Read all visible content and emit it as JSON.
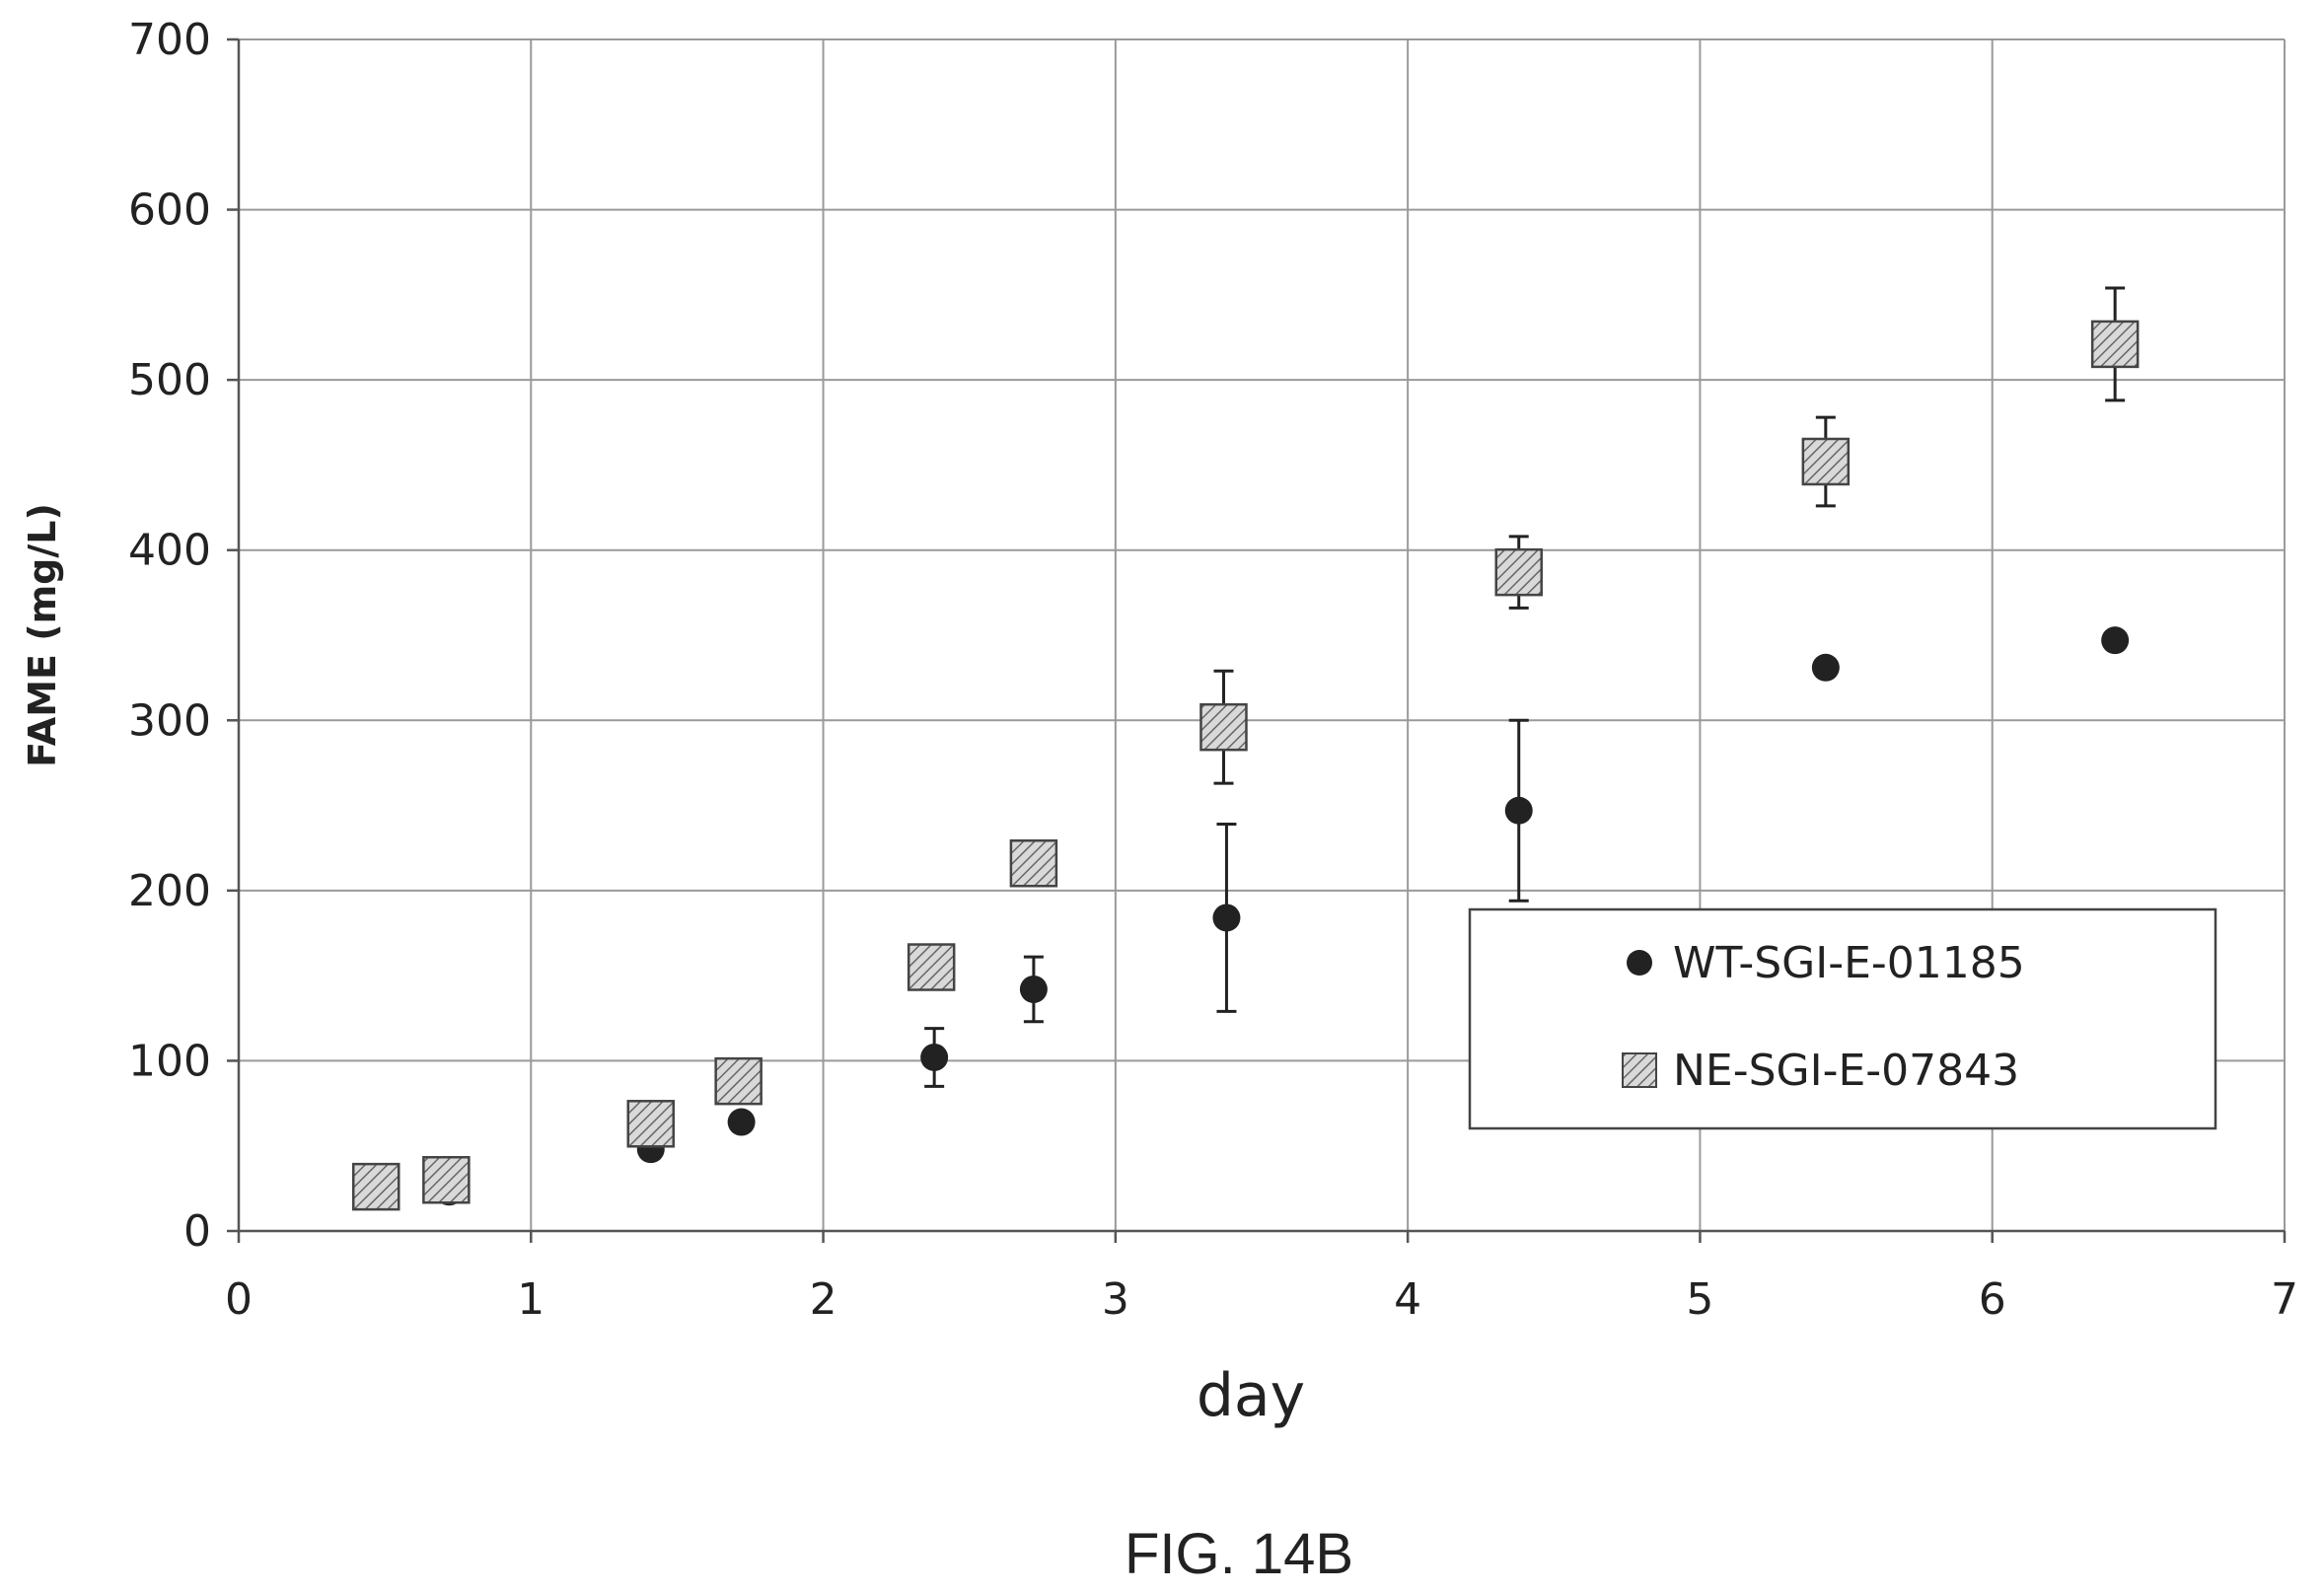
{
  "figure_label": "FIG. 14B",
  "chart_data": {
    "type": "scatter",
    "title": "",
    "xlabel": "day",
    "ylabel": "FAME (mg/L)",
    "xlim": [
      0,
      7
    ],
    "ylim": [
      0,
      700
    ],
    "x_ticks": [
      0,
      1,
      2,
      3,
      4,
      5,
      6,
      7
    ],
    "y_ticks": [
      0,
      100,
      200,
      300,
      400,
      500,
      600,
      700
    ],
    "grid": true,
    "legend_position": "lower-right",
    "series": [
      {
        "name": "WT-SGI-E-01185",
        "marker": "circle",
        "color": "#222222",
        "points": [
          {
            "x": 0.5,
            "y": 25
          },
          {
            "x": 0.72,
            "y": 23
          },
          {
            "x": 1.41,
            "y": 48
          },
          {
            "x": 1.72,
            "y": 64
          },
          {
            "x": 2.38,
            "y": 102,
            "err": 17
          },
          {
            "x": 2.72,
            "y": 142,
            "err": 19
          },
          {
            "x": 3.38,
            "y": 184,
            "err": 55
          },
          {
            "x": 4.38,
            "y": 247,
            "err": 53
          },
          {
            "x": 5.43,
            "y": 331
          },
          {
            "x": 6.42,
            "y": 347
          }
        ]
      },
      {
        "name": "NE-SGI-E-07843",
        "marker": "hatched-square",
        "color": "#bbbbbb",
        "points": [
          {
            "x": 0.47,
            "y": 26
          },
          {
            "x": 0.71,
            "y": 30
          },
          {
            "x": 1.41,
            "y": 63
          },
          {
            "x": 1.71,
            "y": 88
          },
          {
            "x": 2.37,
            "y": 155
          },
          {
            "x": 2.72,
            "y": 216,
            "err": 13
          },
          {
            "x": 3.37,
            "y": 296,
            "err": 33
          },
          {
            "x": 4.38,
            "y": 387,
            "err": 21
          },
          {
            "x": 5.43,
            "y": 452,
            "err": 26
          },
          {
            "x": 6.42,
            "y": 521,
            "err": 33
          }
        ]
      }
    ]
  }
}
